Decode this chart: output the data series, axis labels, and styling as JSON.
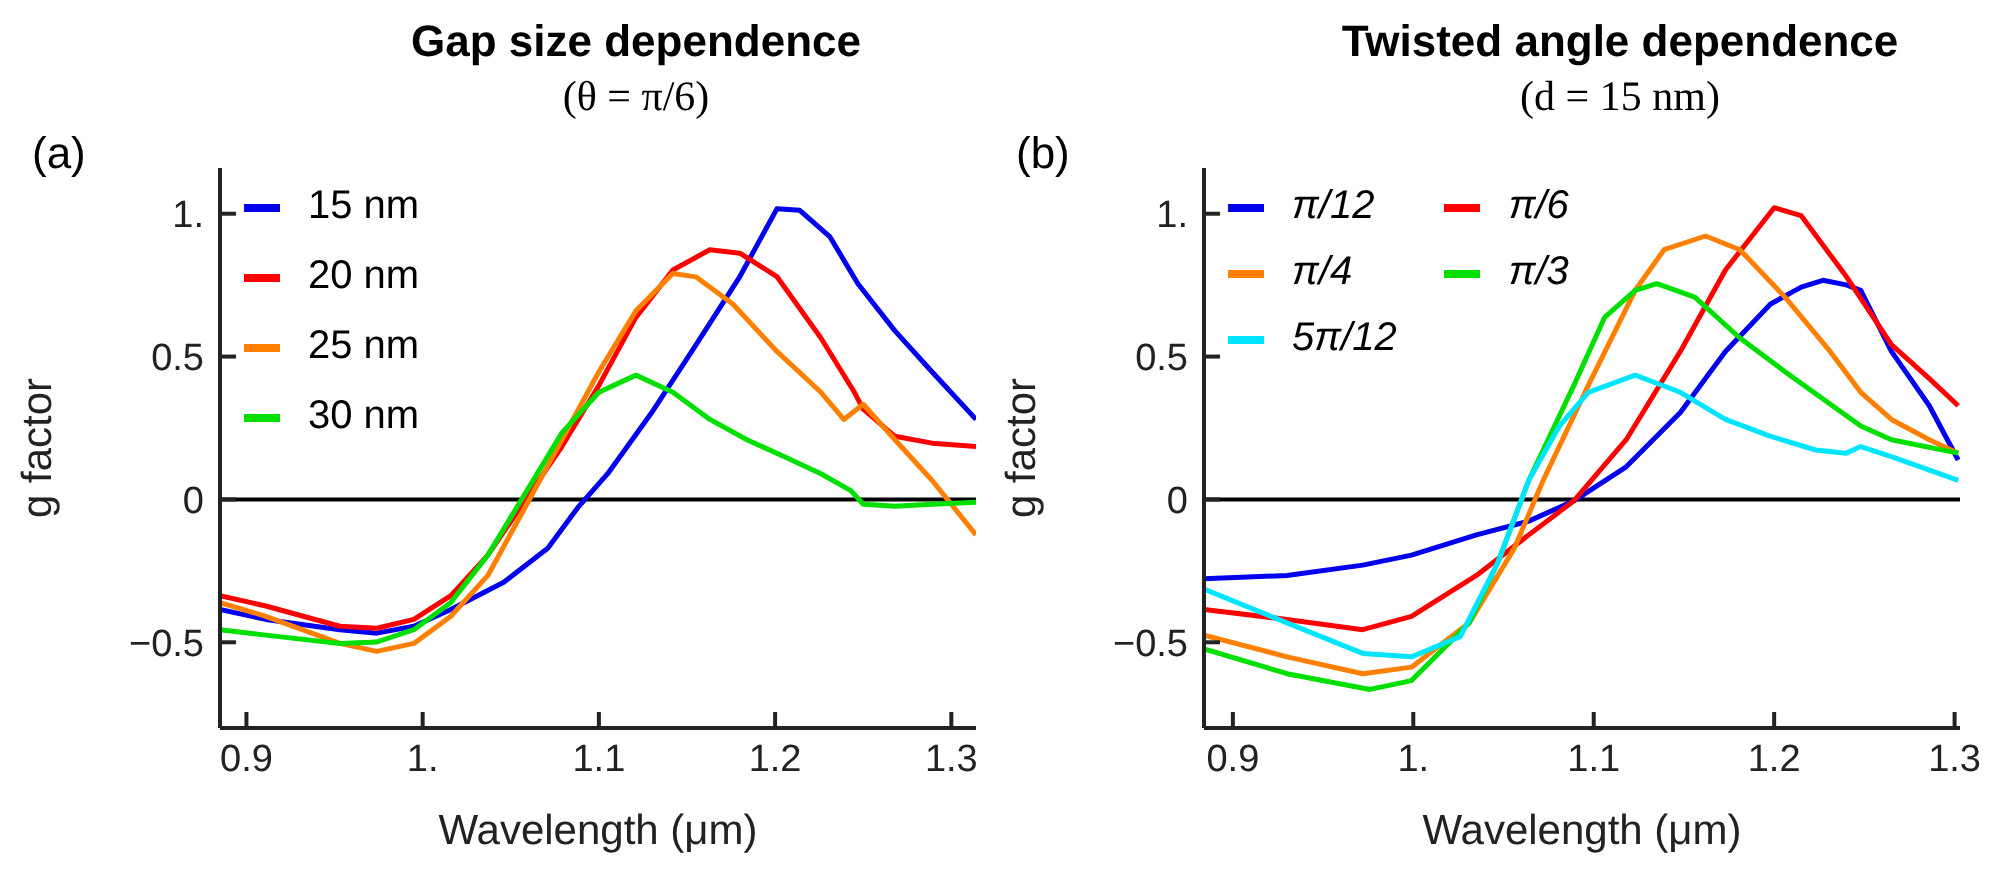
{
  "chart_data": [
    {
      "type": "line",
      "title": "Gap size dependence",
      "subtitle": "(θ = π/6)",
      "xlabel": "Wavelength (μm)",
      "ylabel": "g factor",
      "annotations": [
        "(a)"
      ],
      "xlim": [
        0.885,
        1.314
      ],
      "ylim": [
        -0.8,
        1.16
      ],
      "xticks": [
        0.9,
        {
          "value": 1,
          "label": "1."
        },
        1.1,
        1.2,
        1.3
      ],
      "yticks": [
        -0.5,
        0,
        0.5,
        {
          "value": 1,
          "label": "1."
        }
      ],
      "ref_lines": [
        {
          "axis": "y",
          "value": 0,
          "color": "#000000"
        }
      ],
      "legend": "top left",
      "grid": false,
      "marker": "none",
      "line_style": "solid",
      "series": [
        {
          "name": "15 nm",
          "color": "#0000ee",
          "x": [
            0.885,
            0.911,
            0.953,
            0.974,
            0.995,
            1.016,
            1.046,
            1.071,
            1.088,
            1.105,
            1.13,
            1.155,
            1.18,
            1.201,
            1.214,
            1.231,
            1.247,
            1.268,
            1.289,
            1.314
          ],
          "values": [
            -0.385,
            -0.42,
            -0.456,
            -0.468,
            -0.444,
            -0.385,
            -0.29,
            -0.171,
            -0.029,
            0.09,
            0.304,
            0.54,
            0.78,
            1.017,
            1.012,
            0.92,
            0.755,
            0.59,
            0.447,
            0.28
          ]
        },
        {
          "name": "20 nm",
          "color": "#ff0000",
          "x": [
            0.885,
            0.911,
            0.953,
            0.974,
            0.995,
            1.016,
            1.037,
            1.058,
            1.079,
            1.1,
            1.121,
            1.142,
            1.163,
            1.18,
            1.201,
            1.226,
            1.245,
            1.25,
            1.268,
            1.289,
            1.314
          ],
          "values": [
            -0.337,
            -0.373,
            -0.444,
            -0.451,
            -0.42,
            -0.337,
            -0.195,
            -0.005,
            0.185,
            0.399,
            0.637,
            0.803,
            0.874,
            0.862,
            0.78,
            0.565,
            0.375,
            0.316,
            0.221,
            0.197,
            0.185
          ]
        },
        {
          "name": "25 nm",
          "color": "#ff8000",
          "x": [
            0.885,
            0.911,
            0.953,
            0.974,
            0.995,
            1.016,
            1.037,
            1.058,
            1.079,
            1.1,
            1.121,
            1.142,
            1.155,
            1.176,
            1.201,
            1.226,
            1.239,
            1.25,
            1.268,
            1.289,
            1.314
          ],
          "values": [
            -0.361,
            -0.409,
            -0.504,
            -0.532,
            -0.504,
            -0.409,
            -0.266,
            -0.029,
            0.209,
            0.447,
            0.66,
            0.791,
            0.779,
            0.684,
            0.518,
            0.375,
            0.28,
            0.333,
            0.209,
            0.067,
            -0.124
          ]
        },
        {
          "name": "30 nm",
          "color": "#00e000",
          "x": [
            0.885,
            0.911,
            0.953,
            0.974,
            0.995,
            1.016,
            1.037,
            1.058,
            1.079,
            1.1,
            1.121,
            1.142,
            1.163,
            1.184,
            1.205,
            1.226,
            1.243,
            1.25,
            1.268,
            1.289,
            1.314
          ],
          "values": [
            -0.456,
            -0.475,
            -0.504,
            -0.499,
            -0.456,
            -0.361,
            -0.195,
            0.019,
            0.233,
            0.375,
            0.435,
            0.375,
            0.28,
            0.209,
            0.15,
            0.09,
            0.031,
            -0.017,
            -0.024,
            -0.017,
            -0.01
          ]
        }
      ]
    },
    {
      "type": "line",
      "title": "Twisted angle dependence",
      "subtitle": "(d = 15 nm)",
      "xlabel": "Wavelength (μm)",
      "ylabel": "g factor",
      "annotations": [
        "(b)"
      ],
      "xlim": [
        0.884,
        1.303
      ],
      "ylim": [
        -0.8,
        1.16
      ],
      "xticks": [
        0.9,
        {
          "value": 1,
          "label": "1."
        },
        1.1,
        1.2,
        1.3
      ],
      "yticks": [
        -0.5,
        0,
        0.5,
        {
          "value": 1,
          "label": "1."
        }
      ],
      "ref_lines": [
        {
          "axis": "y",
          "value": 0,
          "color": "#000000"
        }
      ],
      "legend": "top left",
      "grid": false,
      "marker": "none",
      "line_style": "solid",
      "series": [
        {
          "name": "π/12",
          "color": "#0000ee",
          "x": [
            0.884,
            0.93,
            0.972,
            0.999,
            1.035,
            1.064,
            1.089,
            1.118,
            1.148,
            1.173,
            1.198,
            1.215,
            1.227,
            1.24,
            1.248,
            1.265,
            1.286,
            1.302
          ],
          "values": [
            -0.278,
            -0.266,
            -0.23,
            -0.195,
            -0.124,
            -0.076,
            -0.005,
            0.114,
            0.304,
            0.518,
            0.684,
            0.743,
            0.767,
            0.751,
            0.732,
            0.518,
            0.328,
            0.138
          ]
        },
        {
          "name": "π/6",
          "color": "#ff0000",
          "x": [
            0.884,
            0.93,
            0.972,
            0.999,
            1.035,
            1.064,
            1.089,
            1.118,
            1.148,
            1.173,
            1.2,
            1.215,
            1.24,
            1.265,
            1.286,
            1.302
          ],
          "values": [
            -0.385,
            -0.42,
            -0.456,
            -0.409,
            -0.266,
            -0.124,
            -0.005,
            0.209,
            0.518,
            0.803,
            1.021,
            0.993,
            0.78,
            0.542,
            0.423,
            0.328
          ]
        },
        {
          "name": "π/4",
          "color": "#ff8000",
          "x": [
            0.884,
            0.93,
            0.972,
            0.999,
            1.031,
            1.056,
            1.072,
            1.097,
            1.123,
            1.139,
            1.162,
            1.181,
            1.206,
            1.231,
            1.248,
            1.265,
            1.286,
            1.302
          ],
          "values": [
            -0.475,
            -0.551,
            -0.61,
            -0.587,
            -0.432,
            -0.171,
            0.067,
            0.399,
            0.732,
            0.874,
            0.922,
            0.874,
            0.708,
            0.518,
            0.375,
            0.28,
            0.209,
            0.162
          ]
        },
        {
          "name": "π/3",
          "color": "#00e000",
          "x": [
            0.884,
            0.93,
            0.976,
            0.999,
            1.031,
            1.047,
            1.064,
            1.089,
            1.106,
            1.123,
            1.135,
            1.156,
            1.181,
            1.206,
            1.248,
            1.265,
            1.302
          ],
          "values": [
            -0.523,
            -0.61,
            -0.665,
            -0.634,
            -0.432,
            -0.219,
            0.067,
            0.399,
            0.637,
            0.732,
            0.755,
            0.708,
            0.565,
            0.447,
            0.257,
            0.209,
            0.162
          ]
        },
        {
          "name": "5π/12",
          "color": "#00e5ff",
          "x": [
            0.884,
            0.93,
            0.972,
            0.999,
            1.026,
            1.047,
            1.064,
            1.081,
            1.097,
            1.123,
            1.148,
            1.173,
            1.198,
            1.223,
            1.24,
            1.248,
            1.265,
            1.302
          ],
          "values": [
            -0.314,
            -0.432,
            -0.539,
            -0.551,
            -0.48,
            -0.219,
            0.067,
            0.257,
            0.375,
            0.435,
            0.375,
            0.28,
            0.221,
            0.173,
            0.162,
            0.185,
            0.15,
            0.067
          ]
        }
      ]
    }
  ]
}
